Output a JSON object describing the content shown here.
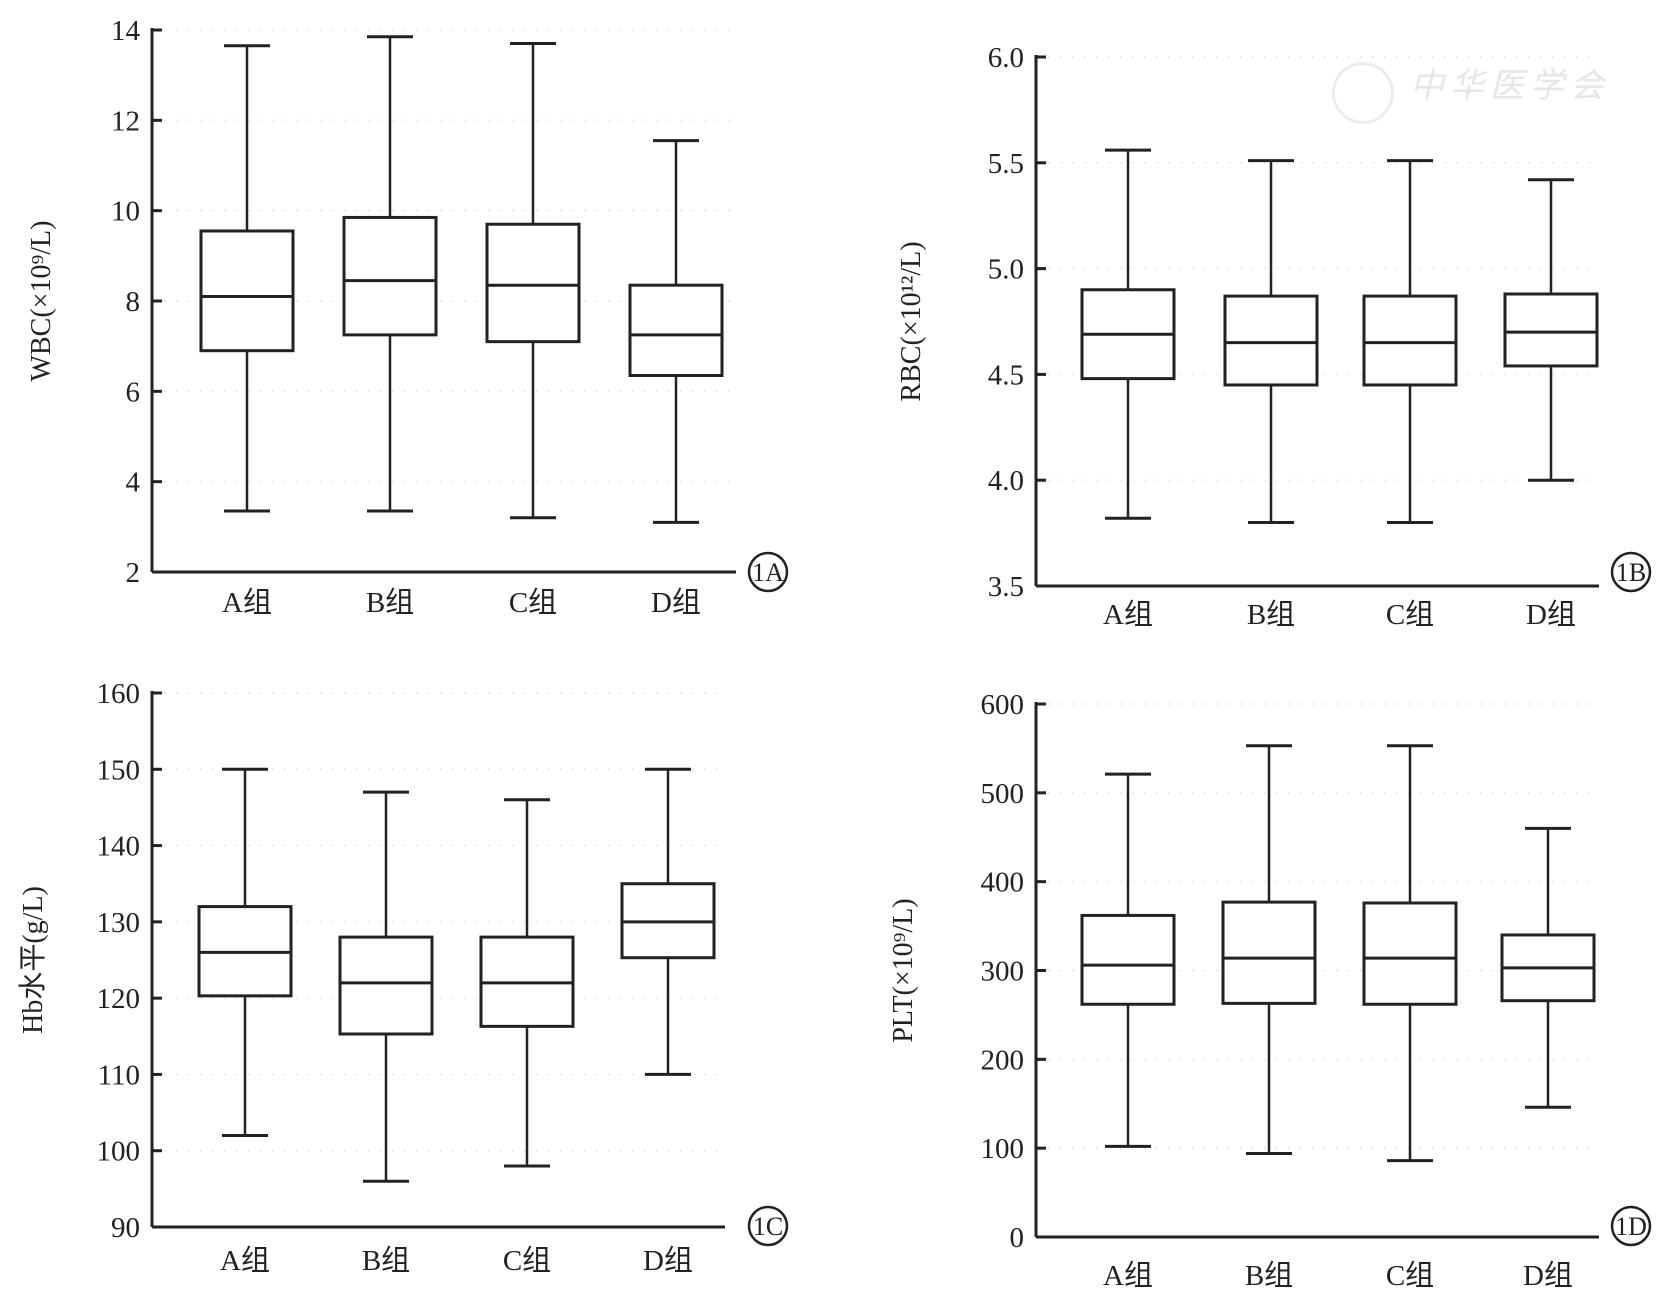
{
  "watermark": "中华医学会",
  "chart_data": [
    {
      "type": "boxplot",
      "panel_label": "1A",
      "ylabel": "WBC(×10⁹/L)",
      "ylim": [
        2,
        14
      ],
      "yticks": [
        2,
        4,
        6,
        8,
        10,
        12,
        14
      ],
      "categories": [
        "A组",
        "B组",
        "C组",
        "D组"
      ],
      "boxes": [
        {
          "min": 3.35,
          "q1": 6.9,
          "median": 8.1,
          "q3": 9.55,
          "max": 13.65
        },
        {
          "min": 3.35,
          "q1": 7.25,
          "median": 8.45,
          "q3": 9.85,
          "max": 13.85
        },
        {
          "min": 3.2,
          "q1": 7.1,
          "median": 8.35,
          "q3": 9.7,
          "max": 13.7
        },
        {
          "min": 3.1,
          "q1": 6.35,
          "median": 7.25,
          "q3": 8.35,
          "max": 11.55
        }
      ]
    },
    {
      "type": "boxplot",
      "panel_label": "1B",
      "ylabel": "RBC(×10¹²/L)",
      "ylim": [
        3.5,
        6.0
      ],
      "yticks": [
        "3.5",
        "4.0",
        "4.5",
        "5.0",
        "5.5",
        "6.0"
      ],
      "categories": [
        "A组",
        "B组",
        "C组",
        "D组"
      ],
      "boxes": [
        {
          "min": 3.82,
          "q1": 4.48,
          "median": 4.69,
          "q3": 4.9,
          "max": 5.56
        },
        {
          "min": 3.8,
          "q1": 4.45,
          "median": 4.65,
          "q3": 4.87,
          "max": 5.51
        },
        {
          "min": 3.8,
          "q1": 4.45,
          "median": 4.65,
          "q3": 4.87,
          "max": 5.51
        },
        {
          "min": 4.0,
          "q1": 4.54,
          "median": 4.7,
          "q3": 4.88,
          "max": 5.42
        }
      ]
    },
    {
      "type": "boxplot",
      "panel_label": "1C",
      "ylabel": "Hb水平(g/L)",
      "ylim": [
        90,
        160
      ],
      "yticks": [
        90,
        100,
        110,
        120,
        130,
        140,
        150,
        160
      ],
      "categories": [
        "A组",
        "B组",
        "C组",
        "D组"
      ],
      "boxes": [
        {
          "min": 102,
          "q1": 120.3,
          "median": 126,
          "q3": 132,
          "max": 150
        },
        {
          "min": 96,
          "q1": 115.3,
          "median": 122,
          "q3": 128,
          "max": 147
        },
        {
          "min": 98,
          "q1": 116.3,
          "median": 122,
          "q3": 128,
          "max": 146
        },
        {
          "min": 110,
          "q1": 125.3,
          "median": 130,
          "q3": 135,
          "max": 150
        }
      ]
    },
    {
      "type": "boxplot",
      "panel_label": "1D",
      "ylabel": "PLT(×10⁹/L)",
      "ylim": [
        0,
        600
      ],
      "yticks": [
        0,
        100,
        200,
        300,
        400,
        500,
        600
      ],
      "categories": [
        "A组",
        "B组",
        "C组",
        "D组"
      ],
      "boxes": [
        {
          "min": 102,
          "q1": 262,
          "median": 306,
          "q3": 362,
          "max": 521
        },
        {
          "min": 94,
          "q1": 263,
          "median": 314,
          "q3": 377,
          "max": 553
        },
        {
          "min": 86,
          "q1": 262,
          "median": 314,
          "q3": 376,
          "max": 553
        },
        {
          "min": 146,
          "q1": 266,
          "median": 303,
          "q3": 340,
          "max": 460
        }
      ]
    }
  ]
}
